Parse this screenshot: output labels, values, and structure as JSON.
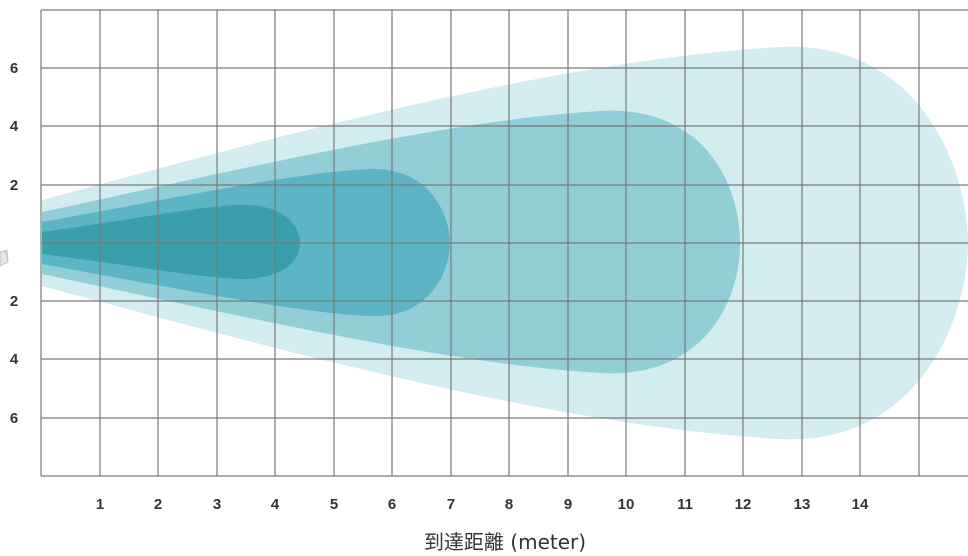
{
  "diagram": {
    "x_axis_label": "到達距離 (meter)",
    "x_ticks": [
      "1",
      "2",
      "3",
      "4",
      "5",
      "6",
      "7",
      "8",
      "9",
      "10",
      "11",
      "12",
      "13",
      "14"
    ],
    "y_ticks_upper": [
      "6",
      "4",
      "2"
    ],
    "y_ticks_lower": [
      "2",
      "4",
      "6"
    ],
    "zones": [
      {
        "reach_m": 15.0,
        "half_width_m": 6.6,
        "color": "#d3ecf0"
      },
      {
        "reach_m": 11.9,
        "half_width_m": 4.5,
        "color": "#92ced5"
      },
      {
        "reach_m": 6.9,
        "half_width_m": 2.5,
        "color": "#5db4c5"
      },
      {
        "reach_m": 4.4,
        "half_width_m": 1.2,
        "color": "#3a9eab"
      }
    ],
    "colors": {
      "grid": "#7a7a7a",
      "text": "#333333",
      "background": "#ffffff"
    }
  }
}
